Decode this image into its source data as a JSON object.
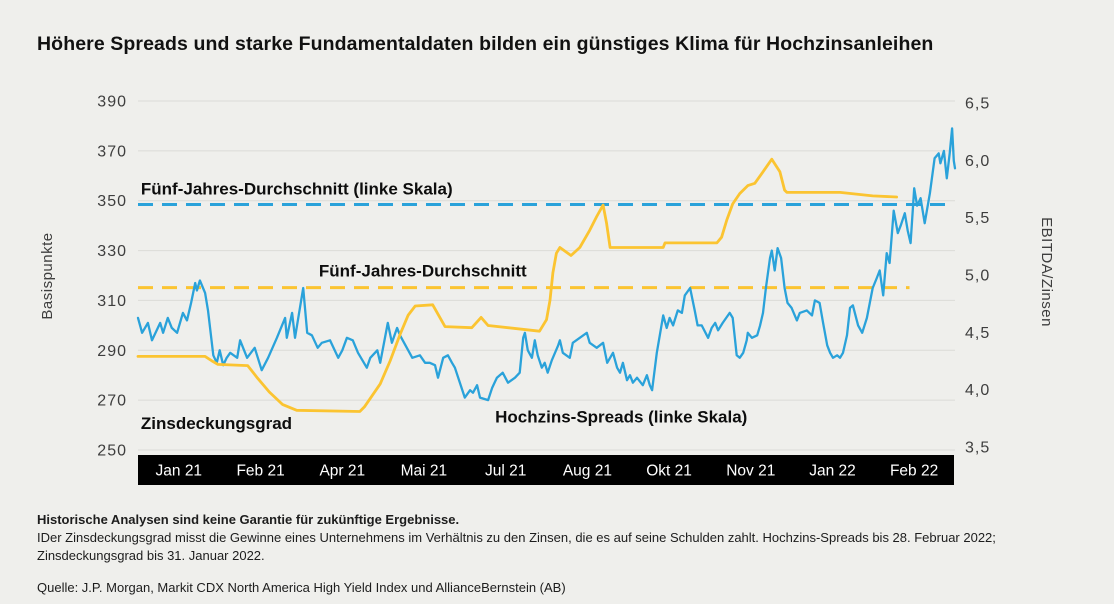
{
  "title": "Höhere Spreads und starke Fundamentaldaten bilden ein günstiges Klima für Hochzinsanleihen",
  "footnotes": {
    "disclaimer": "Historische Analysen sind keine Garantie für zukünftige Ergebnisse.",
    "body": "IDer Zinsdeckungsgrad misst die Gewinne eines Unternehmens im Verhältnis zu den Zinsen, die es auf seine Schulden zahlt. Hochzins-Spreads bis 28. Februar 2022; Zinsdeckungsgrad bis 31. Januar 2022.",
    "source": "Quelle: J.P. Morgan, Markit CDX North America High Yield Index und AllianceBernstein (AB)"
  },
  "chart_data": {
    "type": "line",
    "title": "Höhere Spreads und starke Fundamentaldaten bilden ein günstiges Klima für Hochzinsanleihen",
    "grid": true,
    "left_axis": {
      "label": "Basispunkte",
      "min": 250,
      "max": 390,
      "ticks": [
        {
          "label": "390",
          "value": 390
        },
        {
          "label": "370",
          "value": 370
        },
        {
          "label": "350",
          "value": 350
        },
        {
          "label": "330",
          "value": 330
        },
        {
          "label": "310",
          "value": 310
        },
        {
          "label": "290",
          "value": 290
        },
        {
          "label": "270",
          "value": 270
        },
        {
          "label": "250",
          "value": 250
        }
      ]
    },
    "right_axis": {
      "label": "EBITDA/Zinsen",
      "min": 3.5,
      "max": 6.5,
      "ticks": [
        {
          "label": "6,5",
          "value": 6.5
        },
        {
          "label": "6,0",
          "value": 6.0
        },
        {
          "label": "5,5",
          "value": 5.5
        },
        {
          "label": "5,0",
          "value": 5.0
        },
        {
          "label": "4,5",
          "value": 4.5
        },
        {
          "label": "4,0",
          "value": 4.0
        },
        {
          "label": "3,5",
          "value": 3.5
        }
      ]
    },
    "x_axis": {
      "months_total": 14,
      "labels": [
        "Jan 21",
        "Feb 21",
        "Apr 21",
        "Mai 21",
        "Jul 21",
        "Aug 21",
        "Okt 21",
        "Nov 21",
        "Jan 22",
        "Feb 22"
      ],
      "bar_color": "#000000",
      "label_color": "#ffffff"
    },
    "reference_lines": [
      {
        "name": "Fünf-Jahres-Durchschnitt Spreads",
        "axis": "left",
        "value": 348.5,
        "color": "#2aa2da",
        "x_start_month": 0,
        "x_end_month": 13.95
      },
      {
        "name": "Fünf-Jahres-Durchschnitt Zinsdeckungsgrad",
        "axis": "right",
        "value": 4.89,
        "color": "#fbc431",
        "x_start_month": 0,
        "x_end_month": 13.22
      }
    ],
    "annotations": [
      {
        "text": "Fünf-Jahres-Durchschnitt (linke Skala)",
        "axis": "left",
        "x_month": 0.05,
        "value": 352.5
      },
      {
        "text": "Fünf-Jahres-Durchschnitt",
        "axis": "left",
        "x_month": 3.1,
        "value": 319.5
      },
      {
        "text": "Zinsdeckungsgrad",
        "axis": "left",
        "x_month": 0.05,
        "value": 258.5
      },
      {
        "text": "Hochzins-Spreads (linke Skala)",
        "axis": "left",
        "x_month": 6.12,
        "value": 261
      }
    ],
    "series": [
      {
        "name": "Hochzins-Spreads (linke Skala)",
        "axis": "left",
        "color": "#2aa2da",
        "width": 2.3,
        "points": [
          [
            0,
            303
          ],
          [
            0.07,
            297
          ],
          [
            0.17,
            301
          ],
          [
            0.24,
            294
          ],
          [
            0.38,
            301
          ],
          [
            0.43,
            297
          ],
          [
            0.51,
            303
          ],
          [
            0.58,
            299
          ],
          [
            0.67,
            297
          ],
          [
            0.77,
            305
          ],
          [
            0.84,
            302
          ],
          [
            0.91,
            309
          ],
          [
            0.98,
            317
          ],
          [
            1.01,
            314
          ],
          [
            1.06,
            318
          ],
          [
            1.15,
            313
          ],
          [
            1.2,
            306
          ],
          [
            1.29,
            288
          ],
          [
            1.35,
            285
          ],
          [
            1.4,
            290
          ],
          [
            1.46,
            284
          ],
          [
            1.52,
            287
          ],
          [
            1.58,
            289
          ],
          [
            1.7,
            287
          ],
          [
            1.75,
            294
          ],
          [
            1.87,
            287
          ],
          [
            2,
            291
          ],
          [
            2.12,
            282
          ],
          [
            2.23,
            287
          ],
          [
            2.38,
            295
          ],
          [
            2.52,
            303
          ],
          [
            2.55,
            295
          ],
          [
            2.64,
            305
          ],
          [
            2.69,
            295
          ],
          [
            2.83,
            315
          ],
          [
            2.9,
            297
          ],
          [
            2.98,
            296
          ],
          [
            3.08,
            291
          ],
          [
            3.15,
            293
          ],
          [
            3.29,
            294
          ],
          [
            3.43,
            287
          ],
          [
            3.5,
            290
          ],
          [
            3.58,
            295
          ],
          [
            3.68,
            294
          ],
          [
            3.77,
            289
          ],
          [
            3.92,
            283
          ],
          [
            3.98,
            287
          ],
          [
            4.1,
            290
          ],
          [
            4.15,
            285
          ],
          [
            4.28,
            301
          ],
          [
            4.35,
            293
          ],
          [
            4.44,
            299
          ],
          [
            4.49,
            296
          ],
          [
            4.63,
            290
          ],
          [
            4.7,
            287
          ],
          [
            4.83,
            288
          ],
          [
            4.92,
            285
          ],
          [
            5,
            285
          ],
          [
            5.09,
            284
          ],
          [
            5.14,
            279
          ],
          [
            5.23,
            287
          ],
          [
            5.31,
            288
          ],
          [
            5.38,
            285
          ],
          [
            5.43,
            283
          ],
          [
            5.6,
            271
          ],
          [
            5.69,
            274
          ],
          [
            5.74,
            273
          ],
          [
            5.81,
            276
          ],
          [
            5.86,
            271
          ],
          [
            6,
            270
          ],
          [
            6.07,
            275
          ],
          [
            6.15,
            279
          ],
          [
            6.25,
            281
          ],
          [
            6.34,
            277
          ],
          [
            6.46,
            279
          ],
          [
            6.54,
            281
          ],
          [
            6.6,
            295
          ],
          [
            6.63,
            297
          ],
          [
            6.68,
            290
          ],
          [
            6.75,
            287
          ],
          [
            6.8,
            294
          ],
          [
            6.85,
            288
          ],
          [
            6.92,
            283
          ],
          [
            6.97,
            285
          ],
          [
            7.02,
            281
          ],
          [
            7.09,
            286
          ],
          [
            7.2,
            292
          ],
          [
            7.23,
            294
          ],
          [
            7.28,
            289
          ],
          [
            7.4,
            287
          ],
          [
            7.45,
            293
          ],
          [
            7.57,
            295
          ],
          [
            7.69,
            297
          ],
          [
            7.74,
            293
          ],
          [
            7.86,
            291
          ],
          [
            7.97,
            293
          ],
          [
            8.04,
            285
          ],
          [
            8.14,
            289
          ],
          [
            8.21,
            283
          ],
          [
            8.26,
            281
          ],
          [
            8.31,
            285
          ],
          [
            8.38,
            278
          ],
          [
            8.43,
            280
          ],
          [
            8.48,
            277
          ],
          [
            8.55,
            279
          ],
          [
            8.65,
            276
          ],
          [
            8.72,
            280
          ],
          [
            8.77,
            276
          ],
          [
            8.81,
            274
          ],
          [
            8.89,
            289
          ],
          [
            9,
            304
          ],
          [
            9.06,
            299
          ],
          [
            9.11,
            303
          ],
          [
            9.17,
            300
          ],
          [
            9.25,
            306
          ],
          [
            9.32,
            305
          ],
          [
            9.37,
            312
          ],
          [
            9.46,
            315
          ],
          [
            9.54,
            306
          ],
          [
            9.59,
            300
          ],
          [
            9.66,
            300
          ],
          [
            9.77,
            295
          ],
          [
            9.83,
            299
          ],
          [
            9.89,
            301
          ],
          [
            9.94,
            298
          ],
          [
            10.02,
            301
          ],
          [
            10.14,
            305
          ],
          [
            10.19,
            303
          ],
          [
            10.26,
            288
          ],
          [
            10.31,
            287
          ],
          [
            10.37,
            289
          ],
          [
            10.43,
            294
          ],
          [
            10.45,
            297
          ],
          [
            10.52,
            295
          ],
          [
            10.61,
            296
          ],
          [
            10.66,
            300
          ],
          [
            10.71,
            305
          ],
          [
            10.76,
            315
          ],
          [
            10.83,
            327
          ],
          [
            10.86,
            330
          ],
          [
            10.91,
            322
          ],
          [
            10.96,
            331
          ],
          [
            11.02,
            327
          ],
          [
            11.08,
            315
          ],
          [
            11.13,
            309
          ],
          [
            11.2,
            307
          ],
          [
            11.29,
            302
          ],
          [
            11.34,
            305
          ],
          [
            11.46,
            306
          ],
          [
            11.55,
            304
          ],
          [
            11.6,
            310
          ],
          [
            11.68,
            309
          ],
          [
            11.74,
            301
          ],
          [
            11.81,
            292
          ],
          [
            11.86,
            289
          ],
          [
            11.91,
            287
          ],
          [
            11.98,
            288
          ],
          [
            12.03,
            287
          ],
          [
            12.08,
            289
          ],
          [
            12.15,
            296
          ],
          [
            12.2,
            307
          ],
          [
            12.25,
            308
          ],
          [
            12.34,
            300
          ],
          [
            12.41,
            297
          ],
          [
            12.49,
            303
          ],
          [
            12.54,
            309
          ],
          [
            12.59,
            315
          ],
          [
            12.66,
            319
          ],
          [
            12.71,
            322
          ],
          [
            12.77,
            312
          ],
          [
            12.83,
            329
          ],
          [
            12.88,
            325
          ],
          [
            12.95,
            346
          ],
          [
            13.02,
            337
          ],
          [
            13.07,
            340
          ],
          [
            13.14,
            345
          ],
          [
            13.19,
            338
          ],
          [
            13.24,
            333
          ],
          [
            13.3,
            355
          ],
          [
            13.35,
            348
          ],
          [
            13.41,
            351
          ],
          [
            13.48,
            341
          ],
          [
            13.57,
            353
          ],
          [
            13.65,
            367
          ],
          [
            13.72,
            369
          ],
          [
            13.75,
            365
          ],
          [
            13.81,
            370
          ],
          [
            13.86,
            359
          ],
          [
            13.91,
            369
          ],
          [
            13.95,
            379
          ],
          [
            13.98,
            366
          ],
          [
            14,
            363
          ]
        ]
      },
      {
        "name": "Zinsdeckungsgrad",
        "axis": "right",
        "color": "#fbc431",
        "width": 2.8,
        "points": [
          [
            0,
            4.29
          ],
          [
            1.15,
            4.29
          ],
          [
            1.27,
            4.25
          ],
          [
            1.37,
            4.22
          ],
          [
            1.88,
            4.21
          ],
          [
            2.05,
            4.1
          ],
          [
            2.25,
            3.98
          ],
          [
            2.48,
            3.87
          ],
          [
            2.72,
            3.82
          ],
          [
            3.8,
            3.81
          ],
          [
            3.88,
            3.85
          ],
          [
            4.15,
            4.05
          ],
          [
            4.32,
            4.25
          ],
          [
            4.49,
            4.48
          ],
          [
            4.63,
            4.65
          ],
          [
            4.75,
            4.73
          ],
          [
            5.05,
            4.74
          ],
          [
            5.26,
            4.55
          ],
          [
            5.72,
            4.54
          ],
          [
            5.88,
            4.63
          ],
          [
            6,
            4.56
          ],
          [
            6.88,
            4.51
          ],
          [
            7,
            4.61
          ],
          [
            7.06,
            4.78
          ],
          [
            7.11,
            5.02
          ],
          [
            7.17,
            5.19
          ],
          [
            7.23,
            5.24
          ],
          [
            7.42,
            5.17
          ],
          [
            7.57,
            5.24
          ],
          [
            7.74,
            5.39
          ],
          [
            7.86,
            5.51
          ],
          [
            7.97,
            5.61
          ],
          [
            8.03,
            5.45
          ],
          [
            8.09,
            5.24
          ],
          [
            9,
            5.24
          ],
          [
            9.03,
            5.28
          ],
          [
            9.92,
            5.28
          ],
          [
            10,
            5.33
          ],
          [
            10.09,
            5.48
          ],
          [
            10.19,
            5.62
          ],
          [
            10.31,
            5.71
          ],
          [
            10.45,
            5.78
          ],
          [
            10.57,
            5.8
          ],
          [
            10.71,
            5.9
          ],
          [
            10.86,
            6.01
          ],
          [
            11,
            5.9
          ],
          [
            11.08,
            5.74
          ],
          [
            11.12,
            5.72
          ],
          [
            12.03,
            5.72
          ],
          [
            12.59,
            5.69
          ],
          [
            13,
            5.68
          ]
        ]
      }
    ]
  }
}
